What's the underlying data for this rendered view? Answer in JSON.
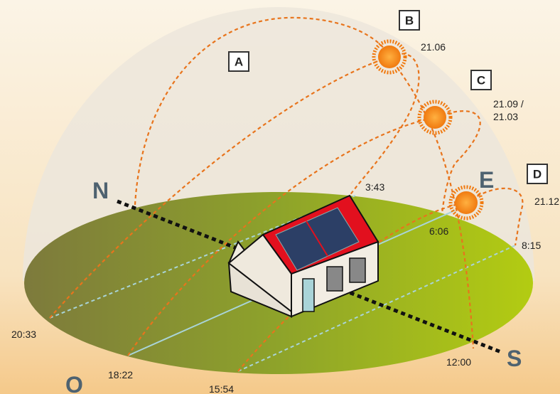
{
  "markers": [
    "A",
    "B",
    "C",
    "D"
  ],
  "dates": [
    "21.06",
    "21.09 /",
    "21.03",
    "21.12"
  ],
  "times": [
    "3:43",
    "6:06",
    "8:15",
    "12:00",
    "15:54",
    "18:22",
    "20:33"
  ],
  "directions": [
    "N",
    "O",
    "S",
    "E"
  ]
}
